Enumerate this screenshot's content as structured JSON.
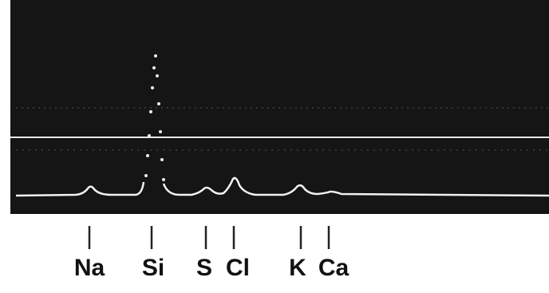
{
  "labels": [
    "Na",
    "Si",
    "S",
    "Cl",
    "K",
    "Ca"
  ]
}
